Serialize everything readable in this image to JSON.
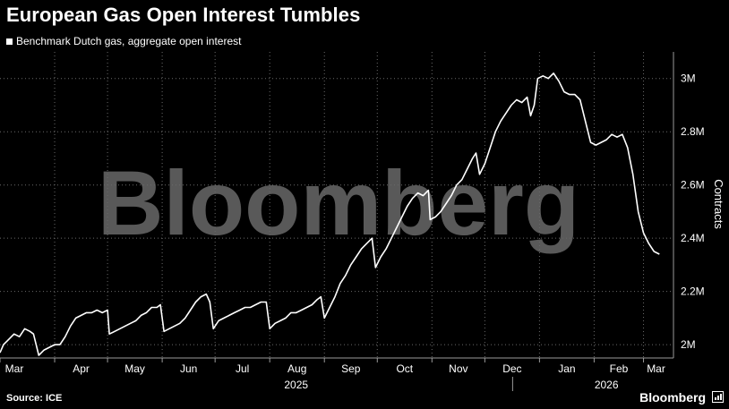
{
  "header": {
    "title": "European Gas Open Interest Tumbles",
    "legend_label": "Benchmark Dutch gas, aggregate open interest"
  },
  "footer": {
    "source": "Source: ICE",
    "brand": "Bloomberg"
  },
  "watermark": "Bloomberg",
  "colors": {
    "background": "#000000",
    "line": "#ffffff",
    "grid": "#555555"
  },
  "chart_data": {
    "type": "line",
    "title": "European Gas Open Interest Tumbles",
    "ylabel": "Contracts",
    "ylim": [
      1.95,
      3.1
    ],
    "yticks": [
      2.0,
      2.2,
      2.4,
      2.6,
      2.8,
      3.0
    ],
    "ytick_labels": [
      "2M",
      "2.2M",
      "2.4M",
      "2.6M",
      "2.8M",
      "3M"
    ],
    "xlim": [
      "2025-03-01",
      "2026-03-18"
    ],
    "month_ticks": [
      {
        "date": "2025-03-01",
        "label": "Mar"
      },
      {
        "date": "2025-04-01",
        "label": "Apr"
      },
      {
        "date": "2025-05-01",
        "label": "May"
      },
      {
        "date": "2025-06-01",
        "label": "Jun"
      },
      {
        "date": "2025-07-01",
        "label": "Jul"
      },
      {
        "date": "2025-08-01",
        "label": "Aug"
      },
      {
        "date": "2025-09-01",
        "label": "Sep"
      },
      {
        "date": "2025-10-01",
        "label": "Oct"
      },
      {
        "date": "2025-11-01",
        "label": "Nov"
      },
      {
        "date": "2025-12-01",
        "label": "Dec"
      },
      {
        "date": "2026-01-01",
        "label": "Jan"
      },
      {
        "date": "2026-02-01",
        "label": "Feb"
      },
      {
        "date": "2026-03-01",
        "label": "Mar"
      }
    ],
    "year_labels": [
      {
        "label": "2025",
        "center": "2025-08-16"
      },
      {
        "label": "2026",
        "center": "2026-02-08"
      }
    ],
    "grid": true,
    "series": [
      {
        "name": "Benchmark Dutch gas, aggregate open interest",
        "unit": "million contracts",
        "points": [
          [
            "2025-03-01",
            1.97
          ],
          [
            "2025-03-03",
            2.0
          ],
          [
            "2025-03-06",
            2.02
          ],
          [
            "2025-03-09",
            2.04
          ],
          [
            "2025-03-12",
            2.03
          ],
          [
            "2025-03-15",
            2.06
          ],
          [
            "2025-03-18",
            2.05
          ],
          [
            "2025-03-20",
            2.04
          ],
          [
            "2025-03-23",
            1.96
          ],
          [
            "2025-03-26",
            1.98
          ],
          [
            "2025-03-29",
            1.99
          ],
          [
            "2025-04-01",
            2.0
          ],
          [
            "2025-04-04",
            2.0
          ],
          [
            "2025-04-07",
            2.03
          ],
          [
            "2025-04-10",
            2.07
          ],
          [
            "2025-04-13",
            2.1
          ],
          [
            "2025-04-16",
            2.11
          ],
          [
            "2025-04-19",
            2.12
          ],
          [
            "2025-04-22",
            2.12
          ],
          [
            "2025-04-25",
            2.13
          ],
          [
            "2025-04-28",
            2.12
          ],
          [
            "2025-05-01",
            2.13
          ],
          [
            "2025-05-02",
            2.04
          ],
          [
            "2025-05-05",
            2.05
          ],
          [
            "2025-05-08",
            2.06
          ],
          [
            "2025-05-11",
            2.07
          ],
          [
            "2025-05-14",
            2.08
          ],
          [
            "2025-05-17",
            2.09
          ],
          [
            "2025-05-20",
            2.11
          ],
          [
            "2025-05-23",
            2.12
          ],
          [
            "2025-05-26",
            2.14
          ],
          [
            "2025-05-29",
            2.14
          ],
          [
            "2025-05-31",
            2.15
          ],
          [
            "2025-06-02",
            2.05
          ],
          [
            "2025-06-05",
            2.06
          ],
          [
            "2025-06-08",
            2.07
          ],
          [
            "2025-06-11",
            2.08
          ],
          [
            "2025-06-14",
            2.1
          ],
          [
            "2025-06-17",
            2.13
          ],
          [
            "2025-06-20",
            2.16
          ],
          [
            "2025-06-23",
            2.18
          ],
          [
            "2025-06-26",
            2.19
          ],
          [
            "2025-06-28",
            2.16
          ],
          [
            "2025-06-30",
            2.06
          ],
          [
            "2025-07-03",
            2.09
          ],
          [
            "2025-07-06",
            2.1
          ],
          [
            "2025-07-09",
            2.11
          ],
          [
            "2025-07-12",
            2.12
          ],
          [
            "2025-07-15",
            2.13
          ],
          [
            "2025-07-18",
            2.14
          ],
          [
            "2025-07-21",
            2.14
          ],
          [
            "2025-07-24",
            2.15
          ],
          [
            "2025-07-27",
            2.16
          ],
          [
            "2025-07-30",
            2.16
          ],
          [
            "2025-08-01",
            2.06
          ],
          [
            "2025-08-04",
            2.08
          ],
          [
            "2025-08-07",
            2.09
          ],
          [
            "2025-08-10",
            2.1
          ],
          [
            "2025-08-13",
            2.12
          ],
          [
            "2025-08-16",
            2.12
          ],
          [
            "2025-08-19",
            2.13
          ],
          [
            "2025-08-22",
            2.14
          ],
          [
            "2025-08-25",
            2.15
          ],
          [
            "2025-08-28",
            2.17
          ],
          [
            "2025-08-30",
            2.18
          ],
          [
            "2025-09-01",
            2.1
          ],
          [
            "2025-09-04",
            2.14
          ],
          [
            "2025-09-07",
            2.18
          ],
          [
            "2025-09-10",
            2.23
          ],
          [
            "2025-09-13",
            2.26
          ],
          [
            "2025-09-16",
            2.3
          ],
          [
            "2025-09-19",
            2.33
          ],
          [
            "2025-09-22",
            2.36
          ],
          [
            "2025-09-25",
            2.38
          ],
          [
            "2025-09-28",
            2.4
          ],
          [
            "2025-09-30",
            2.29
          ],
          [
            "2025-10-03",
            2.33
          ],
          [
            "2025-10-06",
            2.36
          ],
          [
            "2025-10-09",
            2.4
          ],
          [
            "2025-10-12",
            2.44
          ],
          [
            "2025-10-15",
            2.48
          ],
          [
            "2025-10-18",
            2.52
          ],
          [
            "2025-10-21",
            2.55
          ],
          [
            "2025-10-24",
            2.57
          ],
          [
            "2025-10-27",
            2.56
          ],
          [
            "2025-10-30",
            2.58
          ],
          [
            "2025-10-31",
            2.47
          ],
          [
            "2025-11-03",
            2.48
          ],
          [
            "2025-11-06",
            2.5
          ],
          [
            "2025-11-09",
            2.53
          ],
          [
            "2025-11-12",
            2.56
          ],
          [
            "2025-11-15",
            2.6
          ],
          [
            "2025-11-18",
            2.62
          ],
          [
            "2025-11-21",
            2.66
          ],
          [
            "2025-11-24",
            2.7
          ],
          [
            "2025-11-26",
            2.72
          ],
          [
            "2025-11-28",
            2.64
          ],
          [
            "2025-12-01",
            2.68
          ],
          [
            "2025-12-04",
            2.74
          ],
          [
            "2025-12-07",
            2.8
          ],
          [
            "2025-12-10",
            2.84
          ],
          [
            "2025-12-13",
            2.87
          ],
          [
            "2025-12-16",
            2.9
          ],
          [
            "2025-12-19",
            2.92
          ],
          [
            "2025-12-22",
            2.91
          ],
          [
            "2025-12-25",
            2.93
          ],
          [
            "2025-12-27",
            2.86
          ],
          [
            "2025-12-29",
            2.9
          ],
          [
            "2025-12-31",
            3.0
          ],
          [
            "2026-01-03",
            3.01
          ],
          [
            "2026-01-06",
            3.0
          ],
          [
            "2026-01-09",
            3.02
          ],
          [
            "2026-01-12",
            2.99
          ],
          [
            "2026-01-15",
            2.95
          ],
          [
            "2026-01-18",
            2.94
          ],
          [
            "2026-01-21",
            2.94
          ],
          [
            "2026-01-24",
            2.92
          ],
          [
            "2026-01-27",
            2.84
          ],
          [
            "2026-01-30",
            2.76
          ],
          [
            "2026-02-02",
            2.75
          ],
          [
            "2026-02-05",
            2.76
          ],
          [
            "2026-02-08",
            2.77
          ],
          [
            "2026-02-11",
            2.79
          ],
          [
            "2026-02-14",
            2.78
          ],
          [
            "2026-02-17",
            2.79
          ],
          [
            "2026-02-20",
            2.74
          ],
          [
            "2026-02-23",
            2.64
          ],
          [
            "2026-02-26",
            2.5
          ],
          [
            "2026-03-01",
            2.42
          ],
          [
            "2026-03-04",
            2.38
          ],
          [
            "2026-03-07",
            2.35
          ],
          [
            "2026-03-10",
            2.34
          ]
        ]
      }
    ]
  }
}
